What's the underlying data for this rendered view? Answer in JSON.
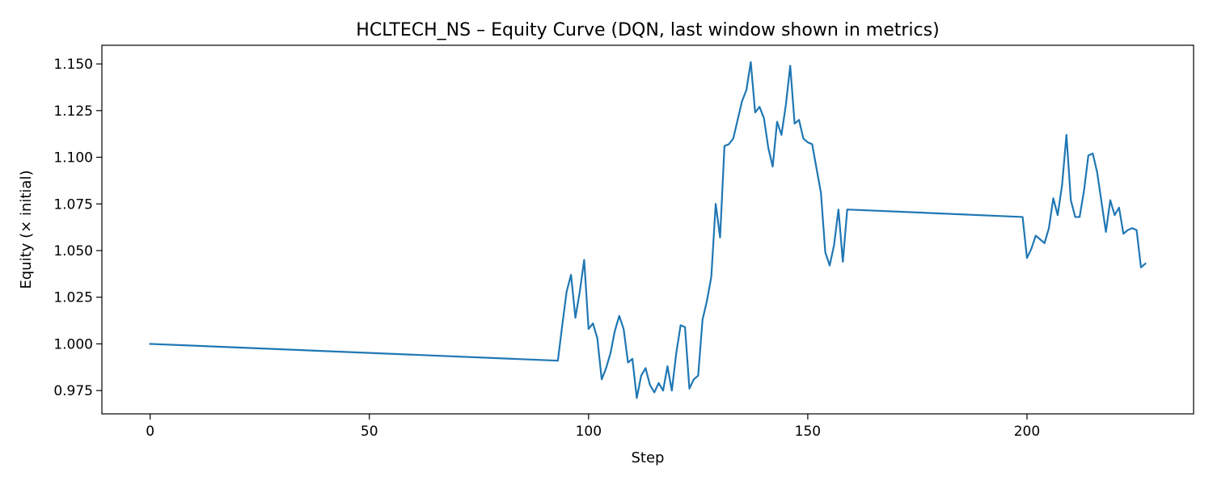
{
  "chart_data": {
    "type": "line",
    "title": "HCLTECH_NS – Equity Curve (DQN, last window shown in metrics)",
    "xlabel": "Step",
    "ylabel": "Equity (× initial)",
    "xlim": [
      -11,
      238
    ],
    "ylim": [
      0.9625,
      1.16
    ],
    "x_ticks": [
      0,
      50,
      100,
      150,
      200
    ],
    "y_ticks": [
      0.975,
      1.0,
      1.025,
      1.05,
      1.075,
      1.1,
      1.125,
      1.15
    ],
    "y_tick_labels": [
      "0.975",
      "1.000",
      "1.025",
      "1.050",
      "1.075",
      "1.100",
      "1.125",
      "1.150"
    ],
    "grid": false,
    "legend": "none",
    "series": [
      {
        "color": "#1f77b4",
        "x": [
          0,
          93,
          94,
          95,
          96,
          97,
          98,
          99,
          100,
          101,
          102,
          103,
          104,
          105,
          106,
          107,
          108,
          109,
          110,
          111,
          112,
          113,
          114,
          115,
          116,
          117,
          118,
          119,
          120,
          121,
          122,
          123,
          124,
          125,
          126,
          127,
          128,
          129,
          130,
          131,
          132,
          133,
          134,
          135,
          136,
          137,
          138,
          139,
          140,
          141,
          142,
          143,
          144,
          145,
          146,
          147,
          148,
          149,
          150,
          151,
          152,
          153,
          154,
          155,
          156,
          157,
          158,
          159,
          199,
          200,
          201,
          202,
          203,
          204,
          205,
          206,
          207,
          208,
          209,
          210,
          211,
          212,
          213,
          214,
          215,
          216,
          217,
          218,
          219,
          220,
          221,
          222,
          223,
          224,
          225,
          226,
          227
        ],
        "y": [
          1.0,
          0.991,
          1.01,
          1.028,
          1.037,
          1.014,
          1.028,
          1.045,
          1.008,
          1.011,
          1.003,
          0.981,
          0.987,
          0.995,
          1.007,
          1.015,
          1.008,
          0.99,
          0.992,
          0.971,
          0.983,
          0.987,
          0.978,
          0.974,
          0.979,
          0.975,
          0.988,
          0.975,
          0.995,
          1.01,
          1.009,
          0.976,
          0.981,
          0.983,
          1.013,
          1.023,
          1.036,
          1.075,
          1.057,
          1.106,
          1.107,
          1.11,
          1.12,
          1.13,
          1.136,
          1.151,
          1.124,
          1.127,
          1.121,
          1.105,
          1.095,
          1.119,
          1.112,
          1.128,
          1.149,
          1.118,
          1.12,
          1.11,
          1.108,
          1.107,
          1.094,
          1.081,
          1.049,
          1.042,
          1.053,
          1.072,
          1.044,
          1.072,
          1.068,
          1.046,
          1.051,
          1.058,
          1.056,
          1.054,
          1.062,
          1.078,
          1.069,
          1.085,
          1.112,
          1.077,
          1.068,
          1.068,
          1.082,
          1.101,
          1.102,
          1.092,
          1.076,
          1.06,
          1.077,
          1.069,
          1.073,
          1.059,
          1.061,
          1.062,
          1.061,
          1.041,
          1.043
        ]
      }
    ]
  }
}
